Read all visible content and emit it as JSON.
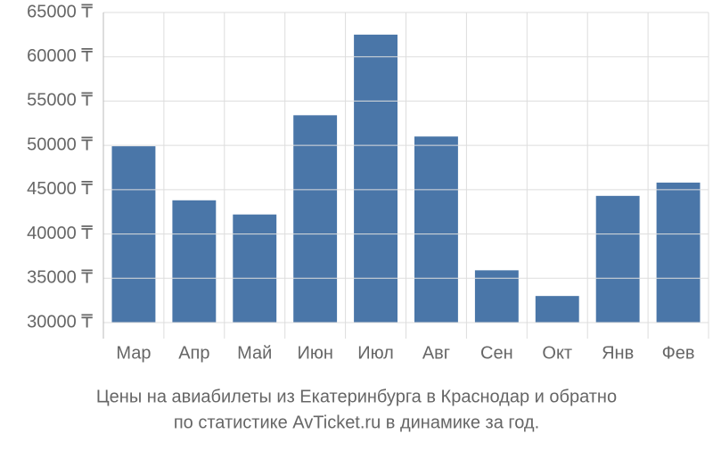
{
  "chart_data": {
    "type": "bar",
    "caption": [
      "Цены на авиабилеты из Екатеринбурга в Краснодар и обратно",
      "по статистике AvTicket.ru в динамике за год."
    ],
    "categories": [
      "Мар",
      "Апр",
      "Май",
      "Июн",
      "Июл",
      "Авг",
      "Сен",
      "Окт",
      "Янв",
      "Фев"
    ],
    "values": [
      49900,
      43800,
      42200,
      53400,
      62500,
      51000,
      35900,
      33000,
      44300,
      45800
    ],
    "color": "#4a76a8",
    "ylim": [
      30000,
      65000
    ],
    "yticks": [
      {
        "value": 30000,
        "label": "30000 ₸"
      },
      {
        "value": 35000,
        "label": "35000 ₸"
      },
      {
        "value": 40000,
        "label": "40000 ₸"
      },
      {
        "value": 45000,
        "label": "45000 ₸"
      },
      {
        "value": 50000,
        "label": "50000 ₸"
      },
      {
        "value": 55000,
        "label": "55000 ₸"
      },
      {
        "value": 60000,
        "label": "60000 ₸"
      },
      {
        "value": 65000,
        "label": "65000 ₸"
      }
    ],
    "grid": true
  }
}
